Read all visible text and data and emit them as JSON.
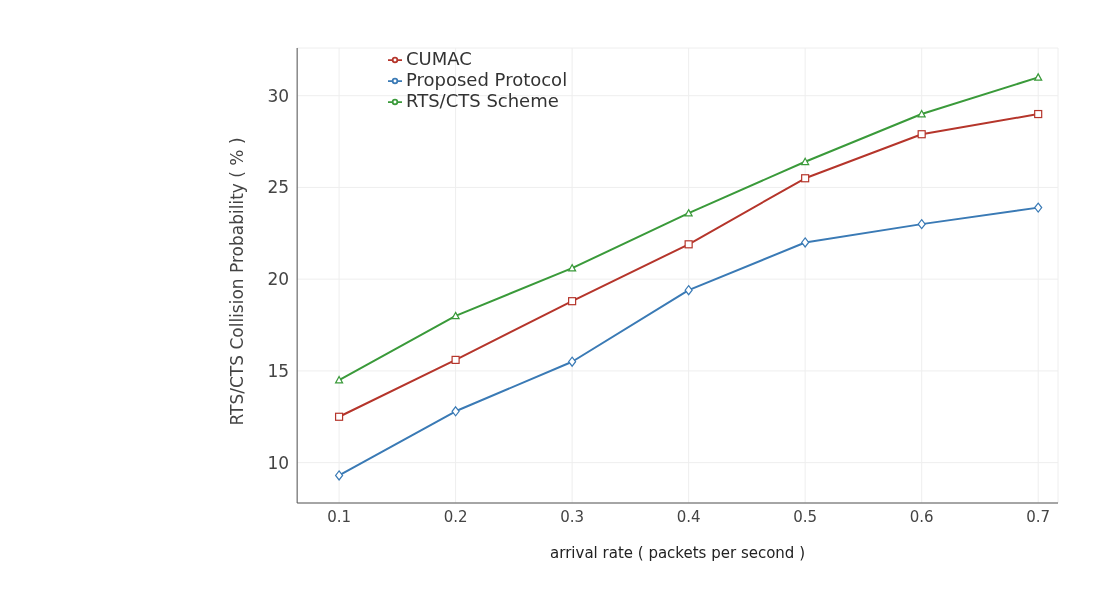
{
  "chart_data": {
    "type": "line",
    "xlabel": "arrival rate ( packets per second )",
    "ylabel": "RTS/CTS Collision Probability ( % )",
    "x": [
      0.1,
      0.2,
      0.3,
      0.4,
      0.5,
      0.6,
      0.7
    ],
    "series": [
      {
        "name": "Proposed Protocol",
        "color": "#3a7ab5",
        "marker": "diamond",
        "values": [
          9.3,
          12.8,
          15.5,
          19.4,
          22.0,
          23.0,
          23.9
        ]
      },
      {
        "name": "CUMAC",
        "color": "#b5352b",
        "marker": "square",
        "values": [
          12.5,
          15.6,
          18.8,
          21.9,
          25.5,
          27.9,
          29.0
        ]
      },
      {
        "name": "RTS/CTS Scheme",
        "color": "#3a9a3a",
        "marker": "triangle",
        "values": [
          14.5,
          18.0,
          20.6,
          23.6,
          26.4,
          29.0,
          31.0
        ]
      }
    ],
    "xlim": [
      0.064,
      0.717
    ],
    "xticks": [
      0.1,
      0.2,
      0.3,
      0.4,
      0.5,
      0.6,
      0.7
    ],
    "ylim": [
      7.8,
      32.6
    ],
    "yticks": [
      10,
      15,
      20,
      25,
      30
    ],
    "grid": true,
    "legend": "top",
    "line_style": "solid"
  }
}
